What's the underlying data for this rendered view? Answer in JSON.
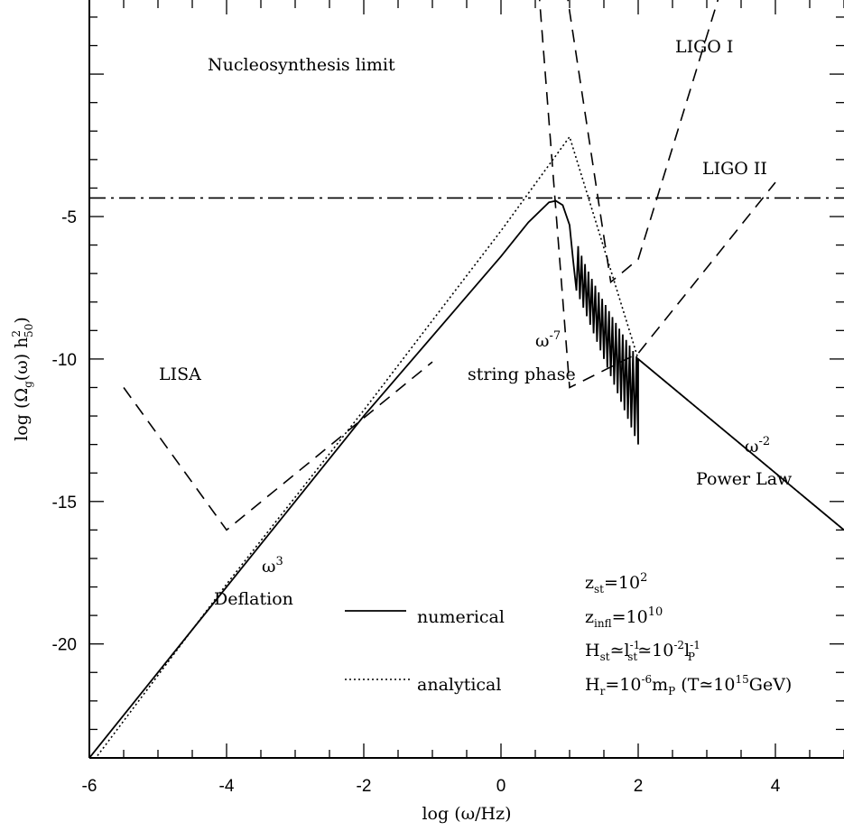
{
  "chart_data": {
    "type": "line",
    "xlabel": "log (ω/Hz)",
    "ylabel": {
      "main": "log (Ω",
      "sub_g": "g",
      "mid": "(ω) h",
      "sup": "2",
      "sub": "50",
      "end": ")"
    },
    "xlim": [
      -6,
      5
    ],
    "ylim": [
      -24,
      2.6
    ],
    "x_ticks": [
      -6,
      -4,
      -2,
      0,
      2,
      4
    ],
    "y_ticks": [
      -5,
      -10,
      -15,
      -20
    ],
    "x_tick_labels": [
      "-6",
      "-4",
      "-2",
      "0",
      "2",
      "4"
    ],
    "y_tick_labels": [
      "-5",
      "-10",
      "-15",
      "-20"
    ],
    "grid": false,
    "nucleosynthesis_limit": -4.35,
    "series": [
      {
        "name": "numerical",
        "style": "solid",
        "points": [
          [
            -6,
            -24
          ],
          [
            -4,
            -18
          ],
          [
            -2,
            -12
          ],
          [
            0,
            -6.4
          ],
          [
            0.4,
            -5.2
          ],
          [
            0.7,
            -4.5
          ],
          [
            0.8,
            -4.45
          ],
          [
            0.9,
            -4.6
          ],
          [
            1.0,
            -5.3
          ],
          [
            1.05,
            -6.5
          ],
          [
            1.1,
            -7.6
          ]
        ],
        "oscillation": {
          "x_start": 1.1,
          "x_end": 2.0,
          "n": 18,
          "envelope_top_start": -5.8,
          "envelope_top_end": -10.0,
          "troughs_start": -7.6,
          "troughs_end": -13.0
        },
        "tail": [
          [
            2.0,
            -10.0
          ],
          [
            5.0,
            -16.0
          ]
        ]
      },
      {
        "name": "analytical",
        "style": "dotted",
        "points": [
          [
            -6,
            -24.3
          ],
          [
            -4,
            -17.9
          ],
          [
            -2,
            -11.8
          ],
          [
            0,
            -5.5
          ],
          [
            1.0,
            -2.2
          ],
          [
            2.0,
            -10.0
          ],
          [
            5.0,
            -16.0
          ]
        ]
      },
      {
        "name": "LISA",
        "style": "dashed",
        "points": [
          [
            -5.5,
            -11.0
          ],
          [
            -4.0,
            -16.0
          ],
          [
            -1.0,
            -10.1
          ]
        ]
      },
      {
        "name": "LIGO I",
        "style": "dashed",
        "points": [
          [
            0.95,
            3.0
          ],
          [
            1.6,
            -7.3
          ],
          [
            2.0,
            -6.5
          ],
          [
            3.2,
            2.9
          ]
        ]
      },
      {
        "name": "LIGO II",
        "style": "dashed",
        "points": [
          [
            0.55,
            3.0
          ],
          [
            1.0,
            -11.0
          ],
          [
            2.0,
            -9.8
          ],
          [
            4.0,
            -3.8
          ]
        ]
      }
    ],
    "annotations": {
      "nucleosynthesis": "Nucleosynthesis limit",
      "ligo1": "LIGO I",
      "ligo2": "LIGO II",
      "lisa": "LISA",
      "omega7": "ω",
      "omega7_exp": "-7",
      "string_phase": "string phase",
      "omega2": "ω",
      "omega2_exp": "-2",
      "power_law": "Power Law",
      "omega3": "ω",
      "omega3_exp": "3",
      "deflation": "Deflation"
    },
    "legend": {
      "placement": "bottom-center",
      "entries": [
        {
          "label": "numerical",
          "style": "solid"
        },
        {
          "label": "analytical",
          "style": "dotted"
        }
      ]
    },
    "parameters": [
      {
        "a": "z",
        "a_sub": "st",
        "b": "=10",
        "b_sup": "2"
      },
      {
        "a": "z",
        "a_sub": "infl",
        "b": "=10",
        "b_sup": "10"
      },
      {
        "a": "H",
        "a_sub": "st",
        "b": "≃l",
        "b_sup": "-1",
        "b_sub": "st",
        "c": "≃10",
        "c_sup": "-2",
        "d": "l",
        "d_sup": "-1",
        "d_sub": "P"
      },
      {
        "a": "H",
        "a_sub": "r",
        "b": "=10",
        "b_sup": "-6",
        "c": "m",
        "c_sub": "P",
        "d": " (T≃10",
        "d_sup": "15",
        "e": "GeV)"
      }
    ]
  }
}
